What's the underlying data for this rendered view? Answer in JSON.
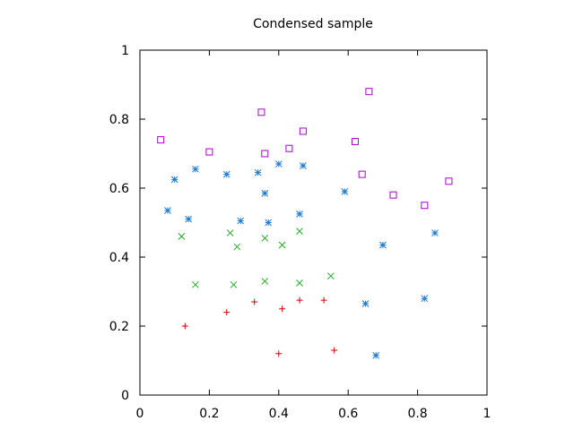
{
  "chart_data": {
    "type": "scatter",
    "title": "Condensed sample",
    "xlabel": "",
    "ylabel": "",
    "xlim": [
      0,
      1
    ],
    "ylim": [
      0,
      1
    ],
    "xticks": [
      "0",
      "0.2",
      "0.4",
      "0.6",
      "0.8",
      "1"
    ],
    "yticks": [
      "0",
      "0.2",
      "0.4",
      "0.6",
      "0.8",
      "1"
    ],
    "grid": false,
    "legend": "none",
    "series": [
      {
        "marker": "plus",
        "color": "#cc0000",
        "points": [
          [
            0.13,
            0.2
          ],
          [
            0.25,
            0.24
          ],
          [
            0.33,
            0.27
          ],
          [
            0.41,
            0.25
          ],
          [
            0.46,
            0.275
          ],
          [
            0.53,
            0.275
          ],
          [
            0.4,
            0.12
          ],
          [
            0.56,
            0.13
          ]
        ]
      },
      {
        "marker": "cross",
        "color": "#22aa22",
        "points": [
          [
            0.12,
            0.46
          ],
          [
            0.16,
            0.32
          ],
          [
            0.26,
            0.47
          ],
          [
            0.28,
            0.43
          ],
          [
            0.27,
            0.32
          ],
          [
            0.36,
            0.455
          ],
          [
            0.36,
            0.33
          ],
          [
            0.41,
            0.435
          ],
          [
            0.46,
            0.475
          ],
          [
            0.46,
            0.325
          ],
          [
            0.55,
            0.345
          ]
        ]
      },
      {
        "marker": "star",
        "color": "#1a7ad4",
        "points": [
          [
            0.08,
            0.535
          ],
          [
            0.1,
            0.625
          ],
          [
            0.14,
            0.51
          ],
          [
            0.16,
            0.655
          ],
          [
            0.25,
            0.64
          ],
          [
            0.29,
            0.505
          ],
          [
            0.34,
            0.645
          ],
          [
            0.36,
            0.585
          ],
          [
            0.37,
            0.5
          ],
          [
            0.4,
            0.67
          ],
          [
            0.46,
            0.525
          ],
          [
            0.47,
            0.665
          ],
          [
            0.59,
            0.59
          ],
          [
            0.65,
            0.265
          ],
          [
            0.68,
            0.115
          ],
          [
            0.7,
            0.435
          ],
          [
            0.82,
            0.28
          ],
          [
            0.85,
            0.47
          ]
        ]
      },
      {
        "marker": "square",
        "color": "#aa00cc",
        "points": [
          [
            0.06,
            0.74
          ],
          [
            0.2,
            0.705
          ],
          [
            0.35,
            0.82
          ],
          [
            0.36,
            0.7
          ],
          [
            0.43,
            0.715
          ],
          [
            0.47,
            0.765
          ],
          [
            0.62,
            0.735
          ],
          [
            0.64,
            0.64
          ],
          [
            0.66,
            0.88
          ],
          [
            0.73,
            0.58
          ],
          [
            0.82,
            0.55
          ],
          [
            0.89,
            0.62
          ]
        ]
      }
    ]
  }
}
